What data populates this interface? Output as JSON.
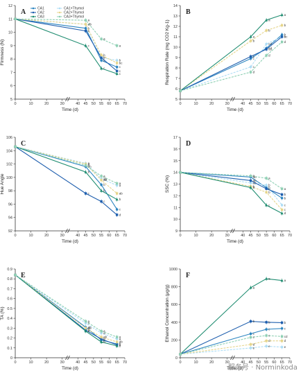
{
  "figure": {
    "watermark": "服务号 · Norminkoda",
    "legend": [
      "CA1",
      "CA1+Thymol",
      "CA2",
      "CA2+Thymol",
      "CA3",
      "CA3+Thymol"
    ],
    "colors": {
      "CA1": "#2e86c1",
      "CA1+Thymol": "#aeddf5",
      "CA2": "#1f5fae",
      "CA2+Thymol": "#e6d58c",
      "CA3": "#1e8c70",
      "CA3+Thymol": "#8fd0b4"
    }
  },
  "chart_data": [
    {
      "type": "line",
      "panel": "A",
      "xlabel": "Time (d)",
      "ylabel": "Firmness (N)",
      "x": [
        0,
        45,
        55,
        65
      ],
      "xticks": [
        0,
        10,
        20,
        30,
        40,
        45,
        50,
        55,
        60,
        65,
        70
      ],
      "xlim": [
        0,
        70
      ],
      "ylim": [
        5,
        12
      ],
      "yticks": [
        5,
        6,
        7,
        8,
        9,
        10,
        11,
        12
      ],
      "series": [
        {
          "name": "CA1",
          "values": [
            11.0,
            10.3,
            7.9,
            7.4
          ],
          "letters": [
            "a",
            "b",
            "b",
            "c"
          ]
        },
        {
          "name": "CA1+Thymol",
          "values": [
            11.0,
            10.6,
            8.1,
            7.9
          ],
          "letters": [
            "a",
            "ab",
            "b",
            "b"
          ]
        },
        {
          "name": "CA2",
          "values": [
            11.0,
            10.1,
            8.1,
            7.1
          ],
          "letters": [
            "a",
            "b",
            "b",
            "c"
          ]
        },
        {
          "name": "CA2+Thymol",
          "values": [
            11.0,
            10.6,
            8.3,
            7.7
          ],
          "letters": [
            "a",
            "ab",
            "b",
            "bc"
          ]
        },
        {
          "name": "CA3",
          "values": [
            11.0,
            9.0,
            7.3,
            6.9
          ],
          "letters": [
            "a",
            "c",
            "c",
            "c"
          ]
        },
        {
          "name": "CA3+Thymol",
          "values": [
            11.0,
            10.9,
            9.5,
            9.0
          ],
          "letters": [
            "a",
            "a",
            "a",
            "a"
          ]
        }
      ]
    },
    {
      "type": "line",
      "panel": "B",
      "xlabel": "Time (d)",
      "ylabel": "Respiration Rate (mg CO2 Kg-1)",
      "x": [
        0,
        45,
        55,
        65
      ],
      "xticks": [
        0,
        10,
        20,
        30,
        40,
        45,
        50,
        55,
        60,
        65,
        70
      ],
      "xlim": [
        0,
        70
      ],
      "ylim": [
        5,
        14
      ],
      "yticks": [
        5,
        6,
        7,
        8,
        9,
        10,
        11,
        12,
        13,
        14
      ],
      "series": [
        {
          "name": "CA1",
          "values": [
            5.8,
            8.9,
            9.9,
            11.2
          ],
          "letters": [
            "a",
            "c",
            "cd",
            "b"
          ]
        },
        {
          "name": "CA1+Thymol",
          "values": [
            5.8,
            8.1,
            10.3,
            11.0
          ],
          "letters": [
            "a",
            "c",
            "cd",
            "b"
          ]
        },
        {
          "name": "CA2",
          "values": [
            5.8,
            9.1,
            9.8,
            11.0
          ],
          "letters": [
            "a",
            "c",
            "cd",
            "bc"
          ]
        },
        {
          "name": "CA2+Thymol",
          "values": [
            5.8,
            10.6,
            11.6,
            12.1
          ],
          "letters": [
            "a",
            "b",
            "b",
            "b"
          ]
        },
        {
          "name": "CA3",
          "values": [
            5.8,
            11.0,
            12.6,
            13.1
          ],
          "letters": [
            "a",
            "a",
            "a",
            "a"
          ]
        },
        {
          "name": "CA3+Thymol",
          "values": [
            5.8,
            7.6,
            9.2,
            10.5
          ],
          "letters": [
            "a",
            "d",
            "d",
            "d"
          ]
        }
      ]
    },
    {
      "type": "line",
      "panel": "C",
      "xlabel": "Time (d)",
      "ylabel": "Hue Angle",
      "x": [
        0,
        45,
        55,
        65
      ],
      "xticks": [
        0,
        10,
        20,
        30,
        40,
        45,
        50,
        55,
        60,
        65,
        70
      ],
      "xlim": [
        0,
        70
      ],
      "ylim": [
        92,
        106
      ],
      "yticks": [
        92,
        94,
        96,
        98,
        100,
        102,
        104,
        106
      ],
      "series": [
        {
          "name": "CA1",
          "values": [
            104.6,
            101.6,
            98.9,
            95.2
          ],
          "letters": [
            "a",
            "ab",
            "b",
            "c"
          ]
        },
        {
          "name": "CA1+Thymol",
          "values": [
            104.6,
            102.1,
            99.8,
            98.8
          ],
          "letters": [
            "a",
            "a",
            "ab",
            "a"
          ]
        },
        {
          "name": "CA2",
          "values": [
            104.6,
            97.6,
            96.4,
            94.4
          ],
          "letters": [
            "a",
            "c",
            "c",
            "d"
          ]
        },
        {
          "name": "CA2+Thymol",
          "values": [
            104.6,
            102.0,
            99.6,
            97.6
          ],
          "letters": [
            "a",
            "a",
            "ab",
            "ab"
          ]
        },
        {
          "name": "CA3",
          "values": [
            104.6,
            100.8,
            98.0,
            96.7
          ],
          "letters": [
            "a",
            "b",
            "b",
            "b"
          ]
        },
        {
          "name": "CA3+Thymol",
          "values": [
            104.6,
            101.8,
            100.2,
            99.1
          ],
          "letters": [
            "a",
            "a",
            "a",
            "a"
          ]
        }
      ]
    },
    {
      "type": "line",
      "panel": "D",
      "xlabel": "Time (d)",
      "ylabel": "SSC (%)",
      "x": [
        0,
        45,
        55,
        65
      ],
      "xticks": [
        0,
        10,
        20,
        30,
        40,
        45,
        50,
        55,
        60,
        65,
        70
      ],
      "xlim": [
        0,
        70
      ],
      "ylim": [
        9,
        17
      ],
      "yticks": [
        9,
        10,
        11,
        12,
        13,
        14,
        15,
        16,
        17
      ],
      "series": [
        {
          "name": "CA1",
          "values": [
            14.0,
            13.6,
            12.7,
            11.8
          ],
          "letters": [
            "a",
            "ab",
            "b",
            "b"
          ]
        },
        {
          "name": "CA1+Thymol",
          "values": [
            14.0,
            13.1,
            12.9,
            11.2
          ],
          "letters": [
            "a",
            "ab",
            "b",
            "c"
          ]
        },
        {
          "name": "CA2",
          "values": [
            14.0,
            13.3,
            12.6,
            12.1
          ],
          "letters": [
            "a",
            "ab",
            "b",
            "b"
          ]
        },
        {
          "name": "CA2+Thymol",
          "values": [
            14.0,
            12.8,
            12.3,
            10.8
          ],
          "letters": [
            "a",
            "b",
            "b",
            "c"
          ]
        },
        {
          "name": "CA3",
          "values": [
            14.0,
            12.7,
            11.2,
            10.5
          ],
          "letters": [
            "a",
            "b",
            "c",
            "d"
          ]
        },
        {
          "name": "CA3+Thymol",
          "values": [
            14.0,
            13.7,
            13.5,
            12.6
          ],
          "letters": [
            "a",
            "a",
            "a",
            "a"
          ]
        }
      ]
    },
    {
      "type": "line",
      "panel": "E",
      "xlabel": "Time (d)",
      "ylabel": "TA (%)",
      "x": [
        0,
        45,
        55,
        65
      ],
      "xticks": [
        0,
        10,
        20,
        30,
        40,
        45,
        50,
        55,
        60,
        65,
        70
      ],
      "xlim": [
        0,
        70
      ],
      "ylim": [
        0,
        0.9
      ],
      "yticks": [
        0,
        0.1,
        0.2,
        0.3,
        0.4,
        0.5,
        0.6,
        0.7,
        0.8,
        0.9
      ],
      "series": [
        {
          "name": "CA1",
          "values": [
            0.84,
            0.31,
            0.18,
            0.14
          ],
          "letters": [
            "a",
            "ab",
            "b",
            "b"
          ]
        },
        {
          "name": "CA1+Thymol",
          "values": [
            0.84,
            0.35,
            0.25,
            0.19
          ],
          "letters": [
            "a",
            "a",
            "a",
            "a"
          ]
        },
        {
          "name": "CA2",
          "values": [
            0.84,
            0.28,
            0.19,
            0.13
          ],
          "letters": [
            "a",
            "b",
            "b",
            "b"
          ]
        },
        {
          "name": "CA2+Thymol",
          "values": [
            0.84,
            0.3,
            0.21,
            0.16
          ],
          "letters": [
            "a",
            "ab",
            "ab",
            "ab"
          ]
        },
        {
          "name": "CA3",
          "values": [
            0.84,
            0.27,
            0.16,
            0.12
          ],
          "letters": [
            "a",
            "b",
            "b",
            "b"
          ]
        },
        {
          "name": "CA3+Thymol",
          "values": [
            0.84,
            0.37,
            0.27,
            0.21
          ],
          "letters": [
            "a",
            "a",
            "a",
            "a"
          ]
        }
      ]
    },
    {
      "type": "line",
      "panel": "F",
      "xlabel": "Time (d)",
      "ylabel": "Ethanol Concentration (μg/g)",
      "x": [
        0,
        45,
        55,
        65
      ],
      "xticks": [
        0,
        10,
        20,
        30,
        40,
        45,
        50,
        55,
        60,
        65,
        70
      ],
      "xlim": [
        0,
        70
      ],
      "ylim": [
        0,
        1000
      ],
      "yticks": [
        0,
        200,
        400,
        600,
        800,
        1000
      ],
      "series": [
        {
          "name": "CA1",
          "values": [
            40,
            270,
            320,
            330
          ],
          "letters": [
            "a",
            "c",
            "c",
            "c"
          ]
        },
        {
          "name": "CA1+Thymol",
          "values": [
            40,
            110,
            130,
            120
          ],
          "letters": [
            "a",
            "e",
            "e",
            "e"
          ]
        },
        {
          "name": "CA2",
          "values": [
            40,
            410,
            400,
            395
          ],
          "letters": [
            "a",
            "b",
            "b",
            "b"
          ]
        },
        {
          "name": "CA2+Thymol",
          "values": [
            40,
            150,
            190,
            190
          ],
          "letters": [
            "a",
            "d",
            "d",
            "d"
          ]
        },
        {
          "name": "CA3",
          "values": [
            40,
            790,
            890,
            870
          ],
          "letters": [
            "a",
            "a",
            "a",
            "a"
          ]
        },
        {
          "name": "CA3+Thymol",
          "values": [
            40,
            230,
            250,
            240
          ],
          "letters": [
            "a",
            "c",
            "c",
            "cd"
          ]
        }
      ]
    }
  ]
}
